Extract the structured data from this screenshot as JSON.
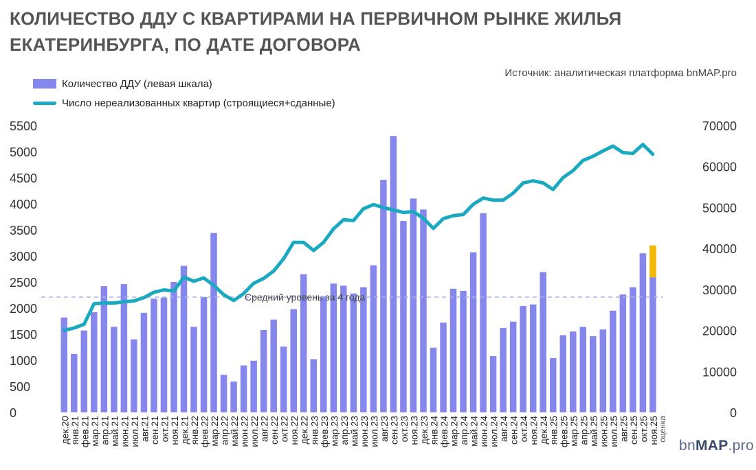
{
  "title_line1": "КОЛИЧЕСТВО ДДУ С КВАРТИРАМИ НА ПЕРВИЧНОМ РЫНКЕ ЖИЛЬЯ",
  "title_line2": "ЕКАТЕРИНБУРГА, ПО ДАТЕ ДОГОВОРА",
  "source": "Источник: аналитическая платформа bnMAP.pro",
  "logo_plain": "bn",
  "logo_bold": "MAP",
  "logo_tail": ".pro",
  "colors": {
    "bars": "#8587ec",
    "estimate": "#f5b800",
    "line": "#1aa9c0",
    "avg_line": "#a9b3e6"
  },
  "chart_data": {
    "type": "bar",
    "categories": [
      "дек.20",
      "янв.21",
      "фев.21",
      "мар.21",
      "апр.21",
      "май.21",
      "июн.21",
      "июл.21",
      "авг.21",
      "сен.21",
      "окт.21",
      "ноя.21",
      "дек.21",
      "янв.22",
      "фев.22",
      "мар.22",
      "апр.22",
      "май.22",
      "июн.22",
      "июл.22",
      "авг.22",
      "сен.22",
      "окт.22",
      "ноя.22",
      "дек.22",
      "янв.23",
      "фев.23",
      "мар.23",
      "апр.23",
      "май.23",
      "июн.23",
      "июл.23",
      "авг.23",
      "сен.23",
      "окт.23",
      "ноя.23",
      "дек.23",
      "янв.24",
      "фев.24",
      "мар.24",
      "апр.24",
      "май.24",
      "июн.24",
      "июл.24",
      "авг.24",
      "сен.24",
      "окт.24",
      "ноя.24",
      "дек.24",
      "янв.25",
      "фев.25",
      "мар.25",
      "апр.25",
      "май.25",
      "июн.25",
      "июл.25",
      "авг.25",
      "сен.25",
      "окт.25",
      "ноя.25"
    ],
    "series": [
      {
        "name": "Количество ДДУ (левая шкала)",
        "axis": "left",
        "type": "bar",
        "values": [
          1820,
          1120,
          1570,
          1920,
          2420,
          1640,
          2460,
          1400,
          1910,
          2180,
          2200,
          2500,
          2810,
          1640,
          2210,
          3440,
          720,
          590,
          900,
          990,
          1580,
          1780,
          1260,
          1980,
          2650,
          1020,
          2230,
          2470,
          2430,
          2280,
          2400,
          2820,
          4460,
          5300,
          3670,
          4100,
          3890,
          1240,
          1720,
          2370,
          2330,
          3070,
          3820,
          1080,
          1620,
          1740,
          2040,
          2070,
          2690,
          1040,
          1480,
          1550,
          1640,
          1460,
          1590,
          1950,
          2260,
          2400,
          3050,
          2590
        ]
      },
      {
        "name": "Число нереализованных квартир (строящиеся+сданные)",
        "axis": "right",
        "type": "line",
        "values": [
          20000,
          20600,
          21500,
          26500,
          26700,
          26700,
          27000,
          27200,
          28000,
          29300,
          29900,
          29600,
          33000,
          32000,
          32800,
          31000,
          28700,
          27300,
          29000,
          31500,
          32700,
          34500,
          37500,
          41500,
          41500,
          39500,
          41500,
          44800,
          47000,
          46800,
          49700,
          50700,
          50000,
          49400,
          48800,
          49000,
          47400,
          44900,
          47300,
          48000,
          48300,
          50800,
          52300,
          51800,
          51800,
          53500,
          56000,
          56500,
          56000,
          54400,
          57300,
          59000,
          61500,
          62500,
          63800,
          65000,
          63400,
          63200,
          65400,
          63000
        ]
      }
    ],
    "estimate": {
      "category": "ноя.25",
      "label": "оценка",
      "value": 3200
    },
    "average": {
      "label": "Средний уровень за 4 года",
      "value": 2210
    },
    "left_axis": {
      "ylim": [
        0,
        5500
      ],
      "ticks": [
        "0",
        "500",
        "1000",
        "1500",
        "2000",
        "2500",
        "3000",
        "3500",
        "4000",
        "4500",
        "5000",
        "5500"
      ]
    },
    "right_axis": {
      "ylim": [
        0,
        70000
      ],
      "ticks": [
        "0",
        "10000",
        "20000",
        "30000",
        "40000",
        "50000",
        "60000",
        "70000"
      ]
    },
    "legend_position": "top-left"
  }
}
